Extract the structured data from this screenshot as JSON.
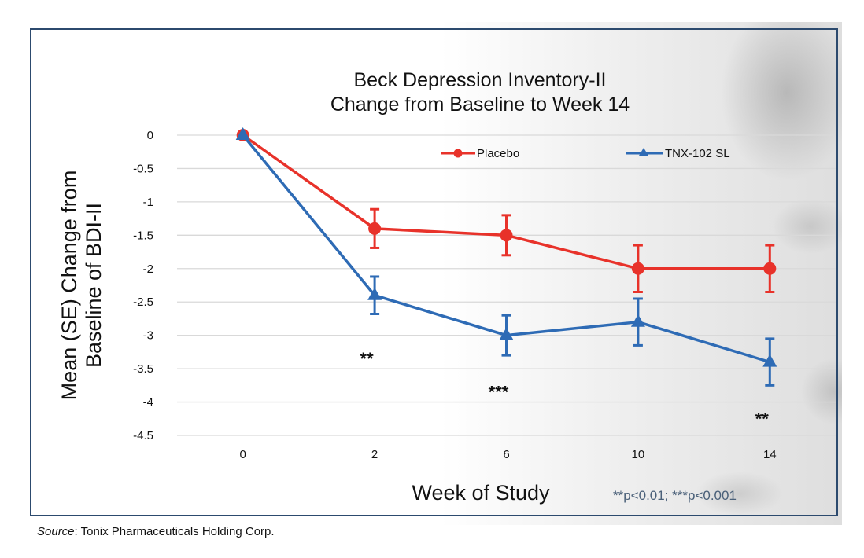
{
  "chart_data": {
    "type": "line",
    "title": [
      "Beck Depression Inventory-II",
      "Change from Baseline to Week 14"
    ],
    "xlabel": "Week of Study",
    "ylabel": [
      "Mean (SE) Change from",
      "Baseline of BDI-II"
    ],
    "categories": [
      "0",
      "2",
      "6",
      "10",
      "14"
    ],
    "ylim": [
      -4.5,
      0
    ],
    "yticks": [
      0,
      -0.5,
      -1,
      -1.5,
      -2,
      -2.5,
      -3,
      -3.5,
      -4,
      -4.5
    ],
    "ytick_labels": [
      "0",
      "-0.5",
      "-1",
      "-1.5",
      "-2",
      "-2.5",
      "-3",
      "-3.5",
      "-4",
      "-4.5"
    ],
    "grid": true,
    "legend_position": "top-right",
    "series": [
      {
        "name": "Placebo",
        "color": "#e8322a",
        "marker": "circle",
        "values": [
          0,
          -1.4,
          -1.5,
          -2.0,
          -2.0
        ],
        "se": [
          0,
          0.29,
          0.3,
          0.35,
          0.35
        ]
      },
      {
        "name": "TNX-102 SL",
        "color": "#2e6bb5",
        "marker": "triangle",
        "values": [
          0,
          -2.4,
          -3.0,
          -2.8,
          -3.4
        ],
        "se": [
          0,
          0.28,
          0.3,
          0.35,
          0.35
        ]
      }
    ],
    "annotations": [
      {
        "category": "2",
        "y": -3.3,
        "text": "**"
      },
      {
        "category": "6",
        "y": -3.8,
        "text": "***"
      },
      {
        "category": "14",
        "y": -4.2,
        "text": "**"
      }
    ],
    "footnote": "**p<0.01; ***p<0.001"
  },
  "source": {
    "label": "Source",
    "text": ": Tonix Pharmaceuticals Holding Corp."
  }
}
